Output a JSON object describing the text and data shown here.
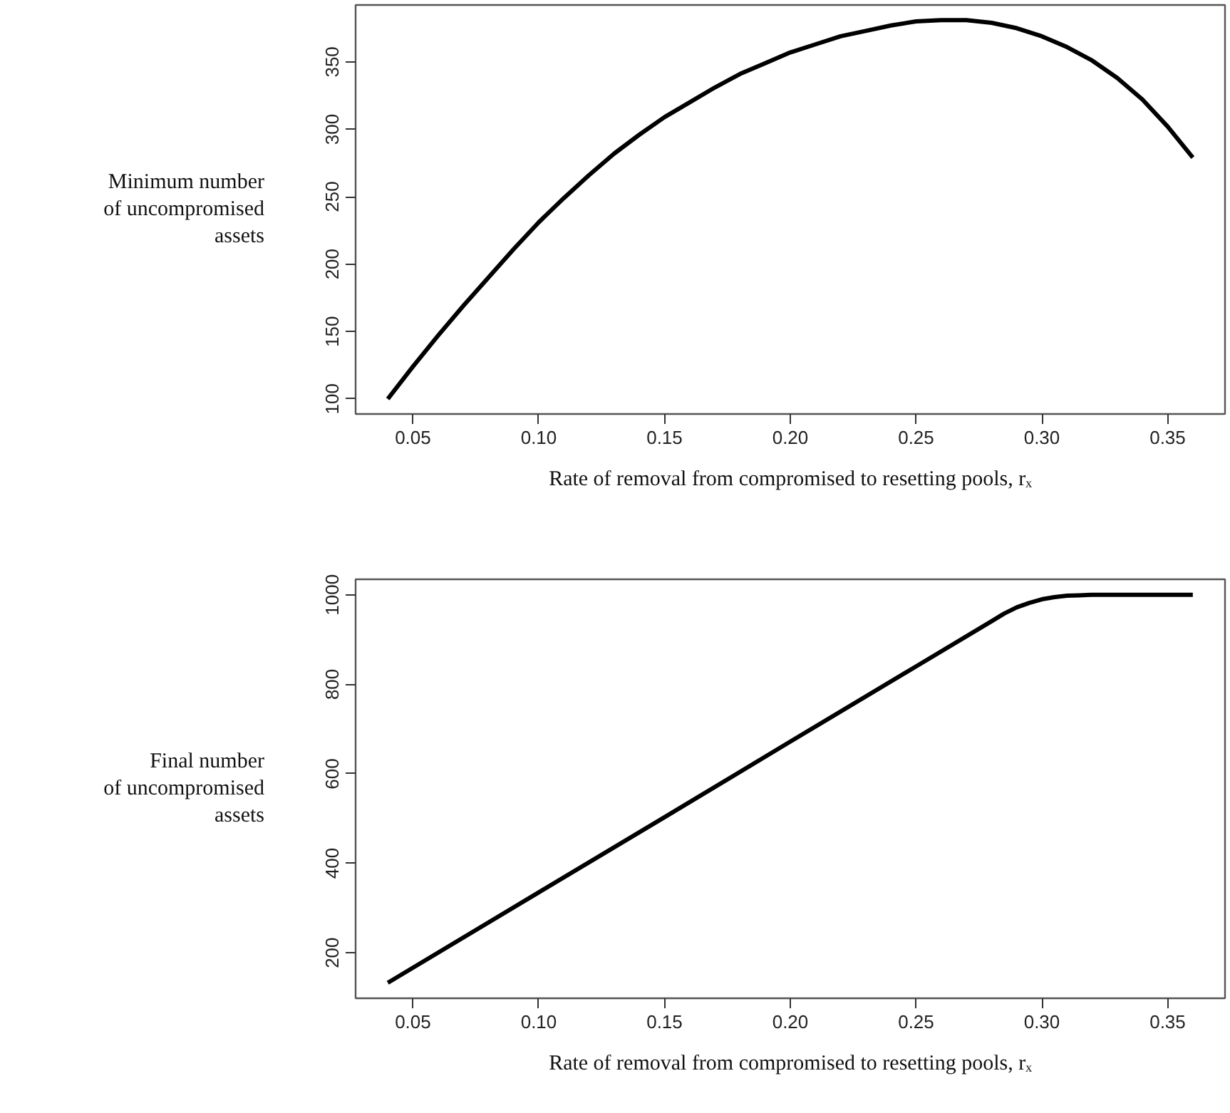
{
  "chart_data": [
    {
      "type": "line",
      "color": "#000000",
      "x": [
        0.04,
        0.05,
        0.06,
        0.07,
        0.08,
        0.09,
        0.1,
        0.11,
        0.12,
        0.13,
        0.14,
        0.15,
        0.16,
        0.17,
        0.18,
        0.19,
        0.2,
        0.21,
        0.22,
        0.23,
        0.24,
        0.25,
        0.26,
        0.27,
        0.28,
        0.29,
        0.3,
        0.31,
        0.32,
        0.33,
        0.34,
        0.35,
        0.36
      ],
      "values": [
        100,
        124,
        147,
        169,
        190,
        211,
        231,
        249,
        266,
        282,
        296,
        309,
        320,
        331,
        341,
        349,
        357,
        363,
        369,
        373,
        377,
        380,
        381,
        381,
        379,
        375,
        369,
        361,
        351,
        338,
        322,
        302,
        279
      ],
      "xlim": [
        0.0272,
        0.3728
      ],
      "ylim": [
        88.8,
        392.2
      ],
      "xticks": [
        {
          "value": 0.05,
          "label": "0.05"
        },
        {
          "value": 0.1,
          "label": "0.10"
        },
        {
          "value": 0.15,
          "label": "0.15"
        },
        {
          "value": 0.2,
          "label": "0.20"
        },
        {
          "value": 0.25,
          "label": "0.25"
        },
        {
          "value": 0.3,
          "label": "0.30"
        },
        {
          "value": 0.35,
          "label": "0.35"
        }
      ],
      "yticks": [
        100,
        150,
        200,
        250,
        300,
        350
      ],
      "xlabel": "Rate of removal from compromised to resetting pools, rₓ",
      "ylabel": "Minimum number\nof uncompromised\nassets"
    },
    {
      "type": "line",
      "color": "#000000",
      "x": [
        0.04,
        0.1,
        0.15,
        0.2,
        0.25,
        0.28,
        0.285,
        0.29,
        0.295,
        0.3,
        0.305,
        0.31,
        0.315,
        0.32,
        0.34,
        0.36
      ],
      "values": [
        133,
        335,
        503,
        672,
        840,
        941,
        958,
        972,
        982,
        990,
        995,
        998,
        999,
        1000,
        1000,
        1000
      ],
      "xlim": [
        0.0272,
        0.3728
      ],
      "ylim": [
        98.3,
        1034.7
      ],
      "xticks": [
        {
          "value": 0.05,
          "label": "0.05"
        },
        {
          "value": 0.1,
          "label": "0.10"
        },
        {
          "value": 0.15,
          "label": "0.15"
        },
        {
          "value": 0.2,
          "label": "0.20"
        },
        {
          "value": 0.25,
          "label": "0.25"
        },
        {
          "value": 0.3,
          "label": "0.30"
        },
        {
          "value": 0.35,
          "label": "0.35"
        }
      ],
      "yticks": [
        200,
        400,
        600,
        800,
        1000
      ],
      "xlabel": "Rate of removal from compromised to resetting pools, rₓ",
      "ylabel": "Final number\nof uncompromised\nassets"
    }
  ]
}
